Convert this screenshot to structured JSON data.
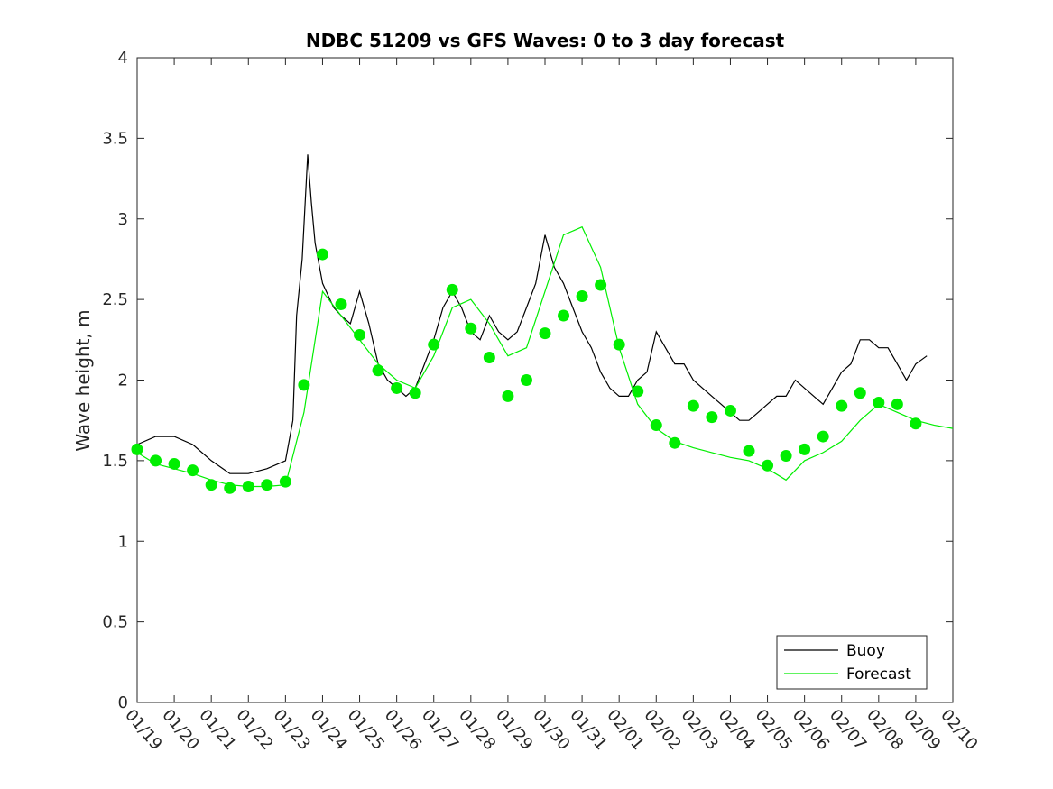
{
  "chart_data": {
    "type": "line",
    "title": "NDBC 51209 vs GFS Waves: 0 to 3 day forecast",
    "ylabel": "Wave height, m",
    "xlabel": "",
    "ylim": [
      0,
      4
    ],
    "xlim": [
      0,
      22
    ],
    "grid": false,
    "legend_position": "bottom-right",
    "x_tick_labels": [
      "01/19",
      "01/20",
      "01/21",
      "01/22",
      "01/23",
      "01/24",
      "01/25",
      "01/26",
      "01/27",
      "01/28",
      "01/29",
      "01/30",
      "01/31",
      "02/01",
      "02/02",
      "02/03",
      "02/04",
      "02/05",
      "02/06",
      "02/07",
      "02/08",
      "02/09",
      "02/10"
    ],
    "y_tick_labels": [
      "0",
      "0.5",
      "1",
      "1.5",
      "2",
      "2.5",
      "3",
      "3.5",
      "4"
    ],
    "colors": {
      "buoy": "#000000",
      "forecast": "#00ee00"
    },
    "series": [
      {
        "name": "Buoy",
        "style": "thin line",
        "x": [
          0,
          0.5,
          1,
          1.5,
          2,
          2.5,
          3,
          3.5,
          4,
          4.2,
          4.3,
          4.45,
          4.6,
          4.7,
          4.8,
          5,
          5.3,
          5.5,
          5.75,
          6,
          6.25,
          6.5,
          6.75,
          7,
          7.25,
          7.5,
          7.75,
          8,
          8.25,
          8.5,
          8.75,
          9,
          9.25,
          9.5,
          9.75,
          10,
          10.25,
          10.5,
          10.75,
          11,
          11.25,
          11.5,
          11.75,
          12,
          12.25,
          12.5,
          12.75,
          13,
          13.25,
          13.5,
          13.75,
          14,
          14.25,
          14.5,
          14.75,
          15,
          15.25,
          15.5,
          15.75,
          16,
          16.25,
          16.5,
          16.75,
          17,
          17.25,
          17.5,
          17.75,
          18,
          18.25,
          18.5,
          18.75,
          19,
          19.25,
          19.5,
          19.75,
          20,
          20.25,
          20.5,
          20.75,
          21,
          21.3
        ],
        "y": [
          1.6,
          1.65,
          1.65,
          1.6,
          1.5,
          1.42,
          1.42,
          1.45,
          1.5,
          1.75,
          2.4,
          2.75,
          3.4,
          3.1,
          2.85,
          2.6,
          2.45,
          2.4,
          2.35,
          2.55,
          2.35,
          2.1,
          2.0,
          1.95,
          1.9,
          1.95,
          2.1,
          2.25,
          2.45,
          2.55,
          2.45,
          2.3,
          2.25,
          2.4,
          2.3,
          2.25,
          2.3,
          2.45,
          2.6,
          2.9,
          2.7,
          2.6,
          2.45,
          2.3,
          2.2,
          2.05,
          1.95,
          1.9,
          1.9,
          2.0,
          2.05,
          2.3,
          2.2,
          2.1,
          2.1,
          2.0,
          1.95,
          1.9,
          1.85,
          1.8,
          1.75,
          1.75,
          1.8,
          1.85,
          1.9,
          1.9,
          2.0,
          1.95,
          1.9,
          1.85,
          1.95,
          2.05,
          2.1,
          2.25,
          2.25,
          2.2,
          2.2,
          2.1,
          2.0,
          2.1,
          2.15
        ]
      },
      {
        "name": "Forecast",
        "style": "thin lines (individual forecast runs)",
        "x": [
          0,
          0.5,
          1,
          1.5,
          2,
          2.5,
          3,
          3.5,
          4,
          4.5,
          5,
          5.5,
          6,
          6.5,
          7,
          7.5,
          8,
          8.5,
          9,
          9.5,
          10,
          10.5,
          11,
          11.5,
          12,
          12.5,
          13,
          13.5,
          14,
          14.5,
          15,
          15.5,
          16,
          16.5,
          17,
          17.5,
          18,
          18.5,
          19,
          19.5,
          20,
          20.5,
          21,
          21.5,
          22
        ],
        "y": [
          1.55,
          1.48,
          1.45,
          1.42,
          1.38,
          1.35,
          1.34,
          1.34,
          1.35,
          1.8,
          2.55,
          2.4,
          2.25,
          2.1,
          2.0,
          1.95,
          2.15,
          2.45,
          2.5,
          2.35,
          2.15,
          2.2,
          2.55,
          2.9,
          2.95,
          2.7,
          2.2,
          1.85,
          1.7,
          1.62,
          1.58,
          1.55,
          1.52,
          1.5,
          1.45,
          1.38,
          1.5,
          1.55,
          1.62,
          1.75,
          1.85,
          1.8,
          1.75,
          1.72,
          1.7
        ]
      },
      {
        "name": "Forecast",
        "style": "markers at forecast initialization",
        "x": [
          0,
          0.5,
          1,
          1.5,
          2,
          2.5,
          3,
          3.5,
          4,
          4.5,
          5,
          5.5,
          6,
          6.5,
          7,
          7.5,
          8,
          8.5,
          9,
          9.5,
          10,
          10.5,
          11,
          11.5,
          12,
          12.5,
          13,
          13.5,
          14,
          14.5,
          15,
          15.5,
          16,
          16.5,
          17,
          17.5,
          18,
          18.5,
          19,
          19.5,
          20,
          20.5,
          21
        ],
        "y": [
          1.57,
          1.5,
          1.48,
          1.44,
          1.35,
          1.33,
          1.34,
          1.35,
          1.37,
          1.97,
          2.78,
          2.47,
          2.28,
          2.06,
          1.95,
          1.92,
          2.22,
          2.56,
          2.32,
          2.14,
          1.9,
          2.0,
          2.29,
          2.4,
          2.52,
          2.59,
          2.22,
          1.93,
          1.72,
          1.61,
          1.84,
          1.77,
          1.81,
          1.56,
          1.47,
          1.53,
          1.57,
          1.65,
          1.84,
          1.92,
          1.86,
          1.85,
          1.73
        ]
      }
    ],
    "legend": [
      {
        "label": "Buoy",
        "color": "#000000"
      },
      {
        "label": "Forecast",
        "color": "#00ee00"
      }
    ]
  }
}
